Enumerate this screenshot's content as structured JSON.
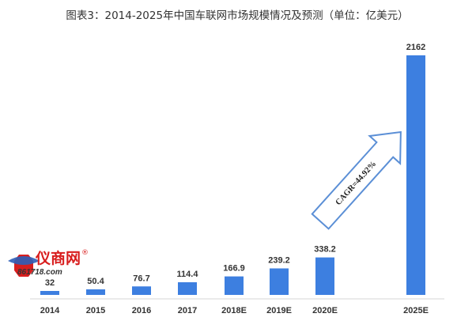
{
  "chart_data": {
    "type": "bar",
    "title": "图表3：2014-2025年中国车联网市场规模情况及预测（单位：亿美元）",
    "xlabel": "",
    "ylabel": "",
    "categories": [
      "2014",
      "2015",
      "2016",
      "2017",
      "2018E",
      "2019E",
      "2020E",
      "2025E"
    ],
    "values": [
      32,
      50.4,
      76.7,
      114.4,
      166.9,
      239.2,
      338.2,
      2162
    ],
    "value_labels": [
      "32",
      "50.4",
      "76.7",
      "114.4",
      "166.9",
      "239.2",
      "338.2",
      "2162"
    ],
    "ylim": [
      0,
      2162
    ],
    "grid": false,
    "legend": "none",
    "bar_color": "#3d7fe0",
    "annotation": "CAGR=44.92%"
  },
  "logo": {
    "text": "仪商网",
    "sub": "861718.com",
    "mark": "®",
    "color": "#d81e1e"
  }
}
